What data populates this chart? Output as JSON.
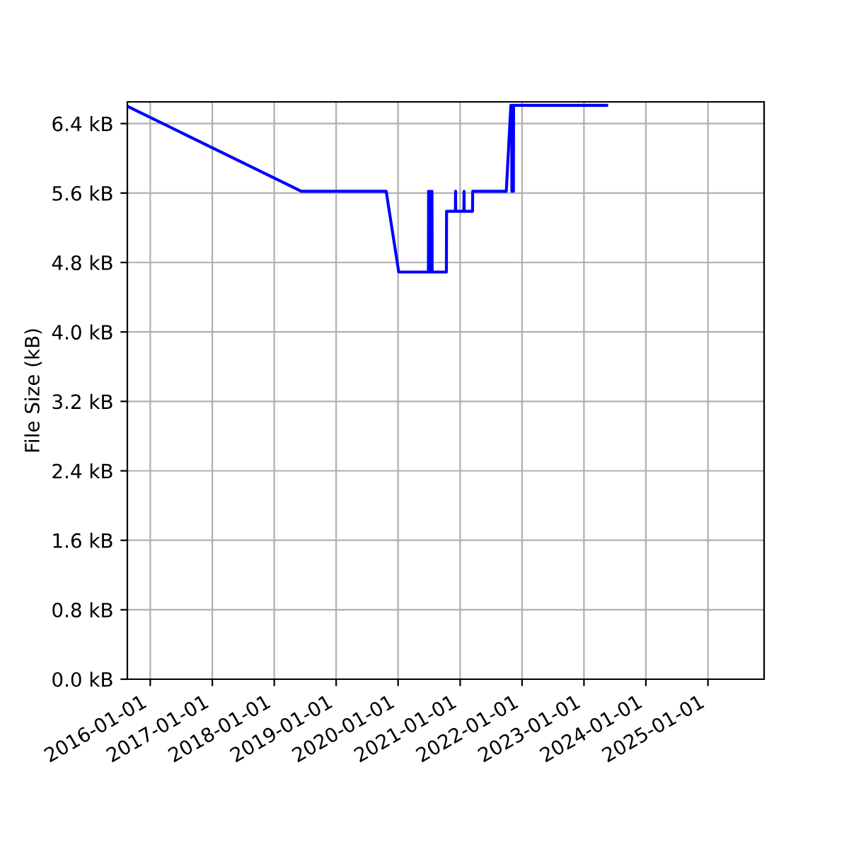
{
  "chart_data": {
    "type": "line",
    "ylabel": "File Size (kB)",
    "x": [
      "2015-08-19",
      "2018-06-10",
      "2019-10-23",
      "2020-01-05",
      "2020-06-28",
      "2020-06-29",
      "2020-06-30",
      "2020-07-04",
      "2020-07-05",
      "2020-07-06",
      "2020-07-18",
      "2020-07-19",
      "2020-07-20",
      "2020-10-12",
      "2020-10-13",
      "2020-12-04",
      "2020-12-05",
      "2020-12-06",
      "2021-01-23",
      "2021-01-24",
      "2021-01-25",
      "2021-03-15",
      "2021-03-16",
      "2021-09-30",
      "2021-10-27",
      "2021-11-01",
      "2021-11-02",
      "2021-11-10",
      "2021-11-11",
      "2021-11-12",
      "2023-05-15"
    ],
    "series": [
      {
        "color": "#0000ff",
        "values": [
          6.6,
          5.62,
          5.62,
          4.69,
          4.69,
          5.62,
          4.69,
          4.69,
          5.62,
          4.69,
          4.69,
          5.62,
          4.69,
          4.69,
          5.39,
          5.39,
          5.62,
          5.39,
          5.39,
          5.62,
          5.39,
          5.39,
          5.62,
          5.62,
          6.61,
          6.61,
          5.62,
          6.61,
          5.62,
          6.61,
          6.61
        ]
      }
    ],
    "xlim": [
      "2015-08-19",
      "2025-11-28"
    ],
    "ylim": [
      0,
      6.65
    ],
    "xticks": [
      "2016-01-01",
      "2017-01-01",
      "2018-01-01",
      "2019-01-01",
      "2020-01-01",
      "2021-01-01",
      "2022-01-01",
      "2023-01-01",
      "2024-01-01",
      "2025-01-01"
    ],
    "yticks": [
      {
        "value": 0,
        "label": "0.0 kB"
      },
      {
        "value": 0.8,
        "label": "0.8 kB"
      },
      {
        "value": 1.6,
        "label": "1.6 kB"
      },
      {
        "value": 2.4,
        "label": "2.4 kB"
      },
      {
        "value": 3.2,
        "label": "3.2 kB"
      },
      {
        "value": 4.0,
        "label": "4.0 kB"
      },
      {
        "value": 4.8,
        "label": "4.8 kB"
      },
      {
        "value": 5.6,
        "label": "5.6 kB"
      },
      {
        "value": 6.4,
        "label": "6.4 kB"
      }
    ],
    "grid": true,
    "marker": "none",
    "line_style": "solid"
  }
}
